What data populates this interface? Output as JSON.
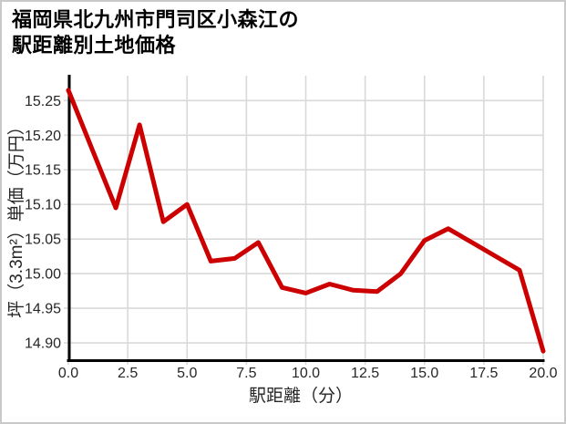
{
  "title": {
    "line1": "福岡県北九州市門司区小森江の",
    "line2": "駅距離別土地価格"
  },
  "chart_data": {
    "type": "line",
    "title": "福岡県北九州市門司区小森江の駅距離別土地価格",
    "xlabel": "駅距離（分）",
    "ylabel": "坪（3.3m²）単価（万円）",
    "x": [
      0,
      1,
      2,
      3,
      4,
      5,
      6,
      7,
      8,
      9,
      10,
      11,
      12,
      13,
      14,
      15,
      16,
      17,
      18,
      19,
      20
    ],
    "values": [
      15.265,
      15.18,
      15.095,
      15.215,
      15.075,
      15.1,
      15.018,
      15.022,
      15.045,
      14.98,
      14.972,
      14.985,
      14.976,
      14.974,
      15.0,
      15.048,
      15.065,
      15.045,
      15.025,
      15.005,
      14.888
    ],
    "series_name": "坪単価",
    "xlim": [
      0,
      20
    ],
    "ylim": [
      14.875,
      15.286
    ],
    "xticks": [
      0,
      2.5,
      5,
      7.5,
      10,
      12.5,
      15,
      17.5,
      20
    ],
    "xtick_labels": [
      "0.0",
      "2.5",
      "5.0",
      "7.5",
      "10.0",
      "12.5",
      "15.0",
      "17.5",
      "20.0"
    ],
    "yticks": [
      15.25,
      15.2,
      15.15,
      15.1,
      15.05,
      15.0,
      14.95,
      14.9
    ],
    "ytick_labels": [
      "15.25",
      "15.20",
      "15.15",
      "15.10",
      "15.05",
      "15.00",
      "14.95",
      "14.90"
    ],
    "grid": true,
    "legend": "none",
    "line_color": "#cc0000"
  },
  "colors": {
    "line": "#cc0000",
    "grid": "#d9d9d9",
    "axis": "#000000",
    "text": "#262626",
    "background": "#ffffff",
    "frame_border": "#c9c9c9"
  }
}
